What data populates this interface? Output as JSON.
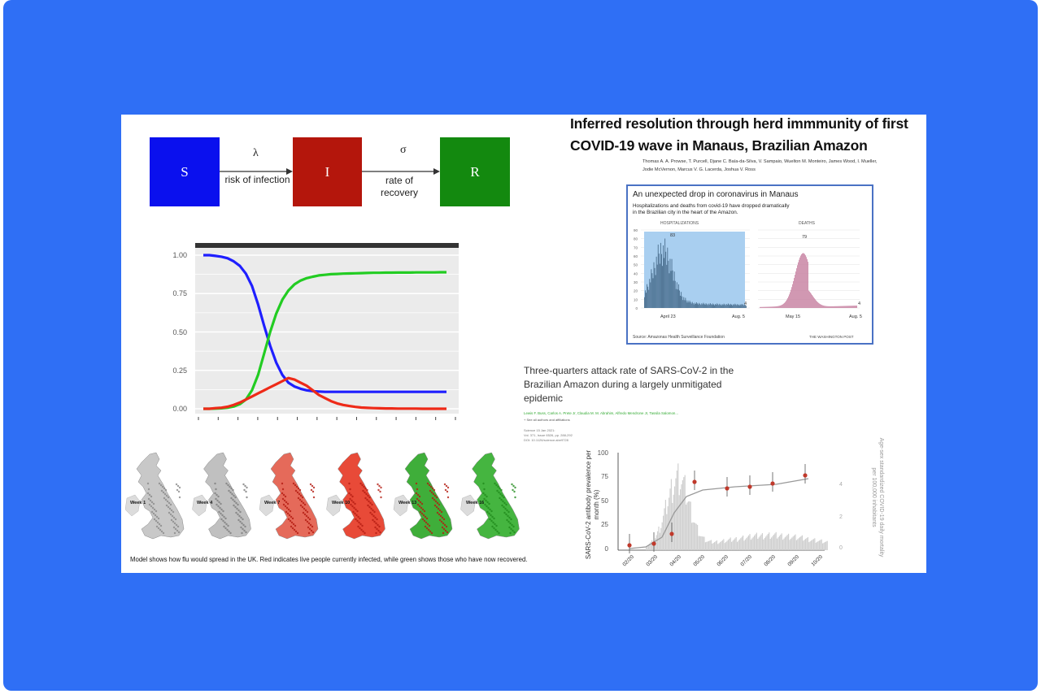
{
  "sir_diagram": {
    "boxes": [
      {
        "label": "S",
        "color": "#0a10ee"
      },
      {
        "label": "I",
        "color": "#b4160c"
      },
      {
        "label": "R",
        "color": "#13890f"
      }
    ],
    "arrows": [
      {
        "greek": "λ",
        "text": "risk of infection"
      },
      {
        "greek": "σ",
        "text_line1": "rate of",
        "text_line2": "recovery"
      }
    ]
  },
  "chart_data": [
    {
      "type": "line",
      "title": "",
      "xlabel": "",
      "ylabel": "",
      "ylim": [
        0,
        1
      ],
      "yticks": [
        "1.00",
        "0.75",
        "0.50",
        "0.25",
        "0.00"
      ],
      "x": [
        0,
        1,
        2,
        3,
        4,
        5,
        6,
        7,
        8,
        9,
        10,
        11,
        12,
        13,
        14,
        15,
        16,
        17,
        18,
        19,
        20,
        21,
        22,
        23,
        24,
        25,
        26,
        27,
        28,
        29,
        30,
        31,
        32,
        33,
        34,
        35,
        36,
        37,
        38,
        39,
        40
      ],
      "series": [
        {
          "color": "#1f1fff",
          "values": [
            1.0,
            1.0,
            0.995,
            0.99,
            0.98,
            0.96,
            0.93,
            0.88,
            0.8,
            0.68,
            0.54,
            0.41,
            0.3,
            0.22,
            0.17,
            0.145,
            0.13,
            0.12,
            0.115,
            0.112,
            0.11,
            0.11,
            0.11,
            0.11,
            0.11,
            0.11,
            0.11,
            0.11,
            0.11,
            0.11,
            0.11,
            0.11,
            0.11,
            0.11,
            0.11,
            0.11,
            0.11,
            0.11,
            0.11,
            0.11,
            0.11
          ]
        },
        {
          "color": "#22cc22",
          "values": [
            0.0,
            0.0,
            0.001,
            0.003,
            0.007,
            0.015,
            0.03,
            0.06,
            0.12,
            0.22,
            0.36,
            0.5,
            0.62,
            0.71,
            0.77,
            0.81,
            0.835,
            0.85,
            0.86,
            0.868,
            0.872,
            0.876,
            0.878,
            0.88,
            0.881,
            0.882,
            0.883,
            0.884,
            0.885,
            0.885,
            0.886,
            0.886,
            0.887,
            0.887,
            0.887,
            0.888,
            0.888,
            0.888,
            0.888,
            0.889,
            0.889
          ]
        },
        {
          "color": "#ee2a18",
          "values": [
            0.0,
            0.0,
            0.004,
            0.007,
            0.013,
            0.025,
            0.04,
            0.06,
            0.08,
            0.1,
            0.12,
            0.14,
            0.16,
            0.18,
            0.2,
            0.19,
            0.17,
            0.15,
            0.12,
            0.09,
            0.07,
            0.05,
            0.035,
            0.025,
            0.018,
            0.012,
            0.008,
            0.006,
            0.004,
            0.003,
            0.002,
            0.002,
            0.001,
            0.001,
            0.001,
            0.001,
            0.0,
            0.0,
            0.0,
            0.0,
            0.0
          ]
        }
      ]
    }
  ],
  "maps": {
    "weeks": [
      "Week 1",
      "Week 4",
      "Week 7",
      "Week 10",
      "Week 13",
      "Week 16"
    ],
    "caption": "Model shows how flu would spread in the UK. Red indicates live people currently infected, while green shows those who have now recovered."
  },
  "paper1": {
    "title_line1": "Inferred resolution through herd immmunity of first",
    "title_line2": "COVID-19 wave in Manaus, Brazilian Amazon",
    "authors_line1": "Thomas A. A. Prowse, T. Purcell, Djane C. Baía-da-Silva, V. Sampaio, Wuelton M. Monteiro, James Wood, I. Mueller,",
    "authors_line2": "Jodie McVernon, Marcus V. G. Lacerda, Joshua V. Ross"
  },
  "wapo_card": {
    "title": "An unexpected drop in coronavirus in Manaus",
    "subtitle_line1": "Hospitalizations and deaths from covid-19 have dropped dramatically",
    "subtitle_line2": "in the Brazilian city in the heart of the Amazon.",
    "panel1_label": "HOSPITALIZATIONS",
    "panel2_label": "DEATHS",
    "yticks": [
      "90",
      "80",
      "70",
      "60",
      "50",
      "40",
      "30",
      "20",
      "10",
      "0"
    ],
    "panel1_peak": "83",
    "panel1_end": "4",
    "panel1_x_left": "April 23",
    "panel1_x_right": "Aug. 5",
    "panel2_peak": "79",
    "panel2_end": "4",
    "panel2_x_left": "May 15",
    "panel2_x_right": "Aug. 5",
    "source": "Source: Amazonas Health Surveillance Foundation",
    "credit": "THE WASHINGTON POST",
    "accent": "#4a72c4"
  },
  "paper2": {
    "title_line1": "Three-quarters attack rate of SARS-CoV-2 in the",
    "title_line2": "Brazilian Amazon during a largely unmitigated",
    "title_line3": "epidemic",
    "authors": "Lewis F. Buss, Carlos A. Prete Jr, Claudia M. M. Abrahim, Alfredo Mendrone Jr, Tassila Salomon...",
    "see_all": "+ See all authors and affiliations",
    "meta1": "Science  15 Jan 2021:",
    "meta2": "Vol. 371, Issue 6526, pp. 288-292",
    "meta3": "DOI: 10.1126/science.abe9728"
  },
  "serology": {
    "ylabel": "SARS-CoV-2 antibody prevalence per month (%)",
    "ylabel_right": "Age-sex standardized COVID-19 daily mortality per 100,000 inhabitants",
    "yticks": [
      "100",
      "75",
      "50",
      "25",
      "0"
    ],
    "yticks_right": [
      "4",
      "2",
      "0"
    ],
    "xticks": [
      "02/20",
      "03/20",
      "04/20",
      "05/20",
      "06/20",
      "07/20",
      "08/20",
      "09/20",
      "10/20"
    ]
  }
}
